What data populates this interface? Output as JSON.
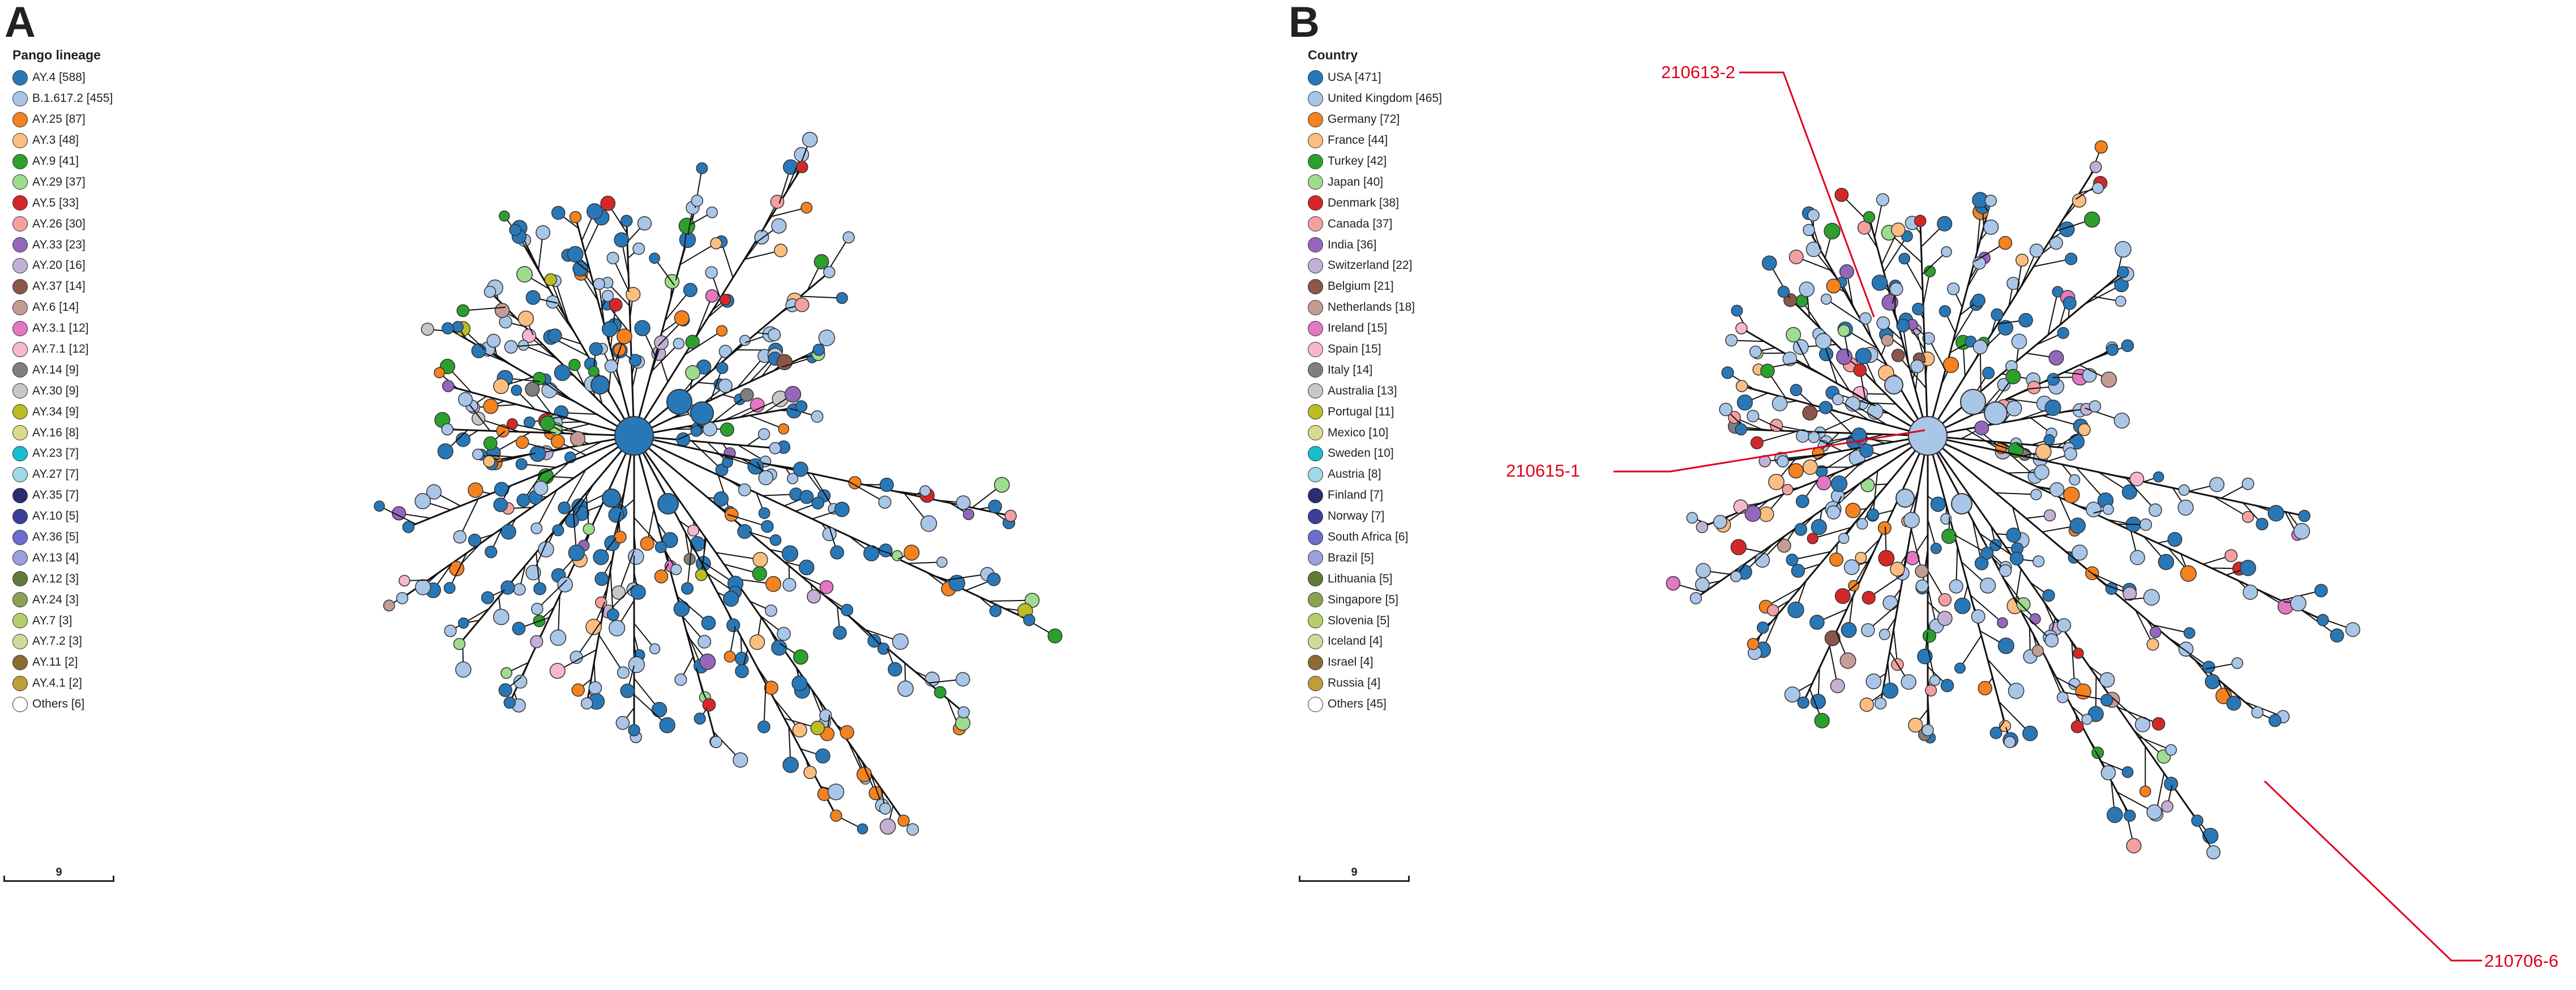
{
  "panels": [
    {
      "letter": "A",
      "legend_title": "Pango lineage",
      "scale_label": "9",
      "legend": [
        {
          "label": "AY.4 [588]",
          "color": "#2878b8"
        },
        {
          "label": "B.1.617.2 [455]",
          "color": "#a9c6e8"
        },
        {
          "label": "AY.25 [87]",
          "color": "#f5821f"
        },
        {
          "label": "AY.3 [48]",
          "color": "#fbbe80"
        },
        {
          "label": "AY.9 [41]",
          "color": "#2ca02c"
        },
        {
          "label": "AY.29 [37]",
          "color": "#9edc8e"
        },
        {
          "label": "AY.5 [33]",
          "color": "#d62728"
        },
        {
          "label": "AY.26 [30]",
          "color": "#f5a0a0"
        },
        {
          "label": "AY.33 [23]",
          "color": "#9467bd"
        },
        {
          "label": "AY.20 [16]",
          "color": "#c5b0d5"
        },
        {
          "label": "AY.37 [14]",
          "color": "#8c564b"
        },
        {
          "label": "AY.6 [14]",
          "color": "#c49c94"
        },
        {
          "label": "AY.3.1 [12]",
          "color": "#e377c2"
        },
        {
          "label": "AY.7.1 [12]",
          "color": "#f7b6d2"
        },
        {
          "label": "AY.14 [9]",
          "color": "#7f7f7f"
        },
        {
          "label": "AY.30 [9]",
          "color": "#c7c7c7"
        },
        {
          "label": "AY.34 [9]",
          "color": "#bcbd22"
        },
        {
          "label": "AY.16 [8]",
          "color": "#dbdb8d"
        },
        {
          "label": "AY.23 [7]",
          "color": "#17becf"
        },
        {
          "label": "AY.27 [7]",
          "color": "#9edae5"
        },
        {
          "label": "AY.35 [7]",
          "color": "#2b2d6e"
        },
        {
          "label": "AY.10 [5]",
          "color": "#3c3f9a"
        },
        {
          "label": "AY.36 [5]",
          "color": "#6b6ecf"
        },
        {
          "label": "AY.13 [4]",
          "color": "#9c9ede"
        },
        {
          "label": "AY.12 [3]",
          "color": "#637939"
        },
        {
          "label": "AY.24 [3]",
          "color": "#8ca252"
        },
        {
          "label": "AY.7 [3]",
          "color": "#b5cf6b"
        },
        {
          "label": "AY.7.2 [3]",
          "color": "#cedb9c"
        },
        {
          "label": "AY.11 [2]",
          "color": "#8c6d31"
        },
        {
          "label": "AY.4.1 [2]",
          "color": "#bd9e39"
        },
        {
          "label": "Others [6]",
          "color": "#ffffff"
        }
      ]
    },
    {
      "letter": "B",
      "legend_title": "Country",
      "scale_label": "9",
      "legend": [
        {
          "label": "USA [471]",
          "color": "#2878b8"
        },
        {
          "label": "United Kingdom [465]",
          "color": "#a9c6e8"
        },
        {
          "label": "Germany [72]",
          "color": "#f5821f"
        },
        {
          "label": "France [44]",
          "color": "#fbbe80"
        },
        {
          "label": "Turkey [42]",
          "color": "#2ca02c"
        },
        {
          "label": "Japan [40]",
          "color": "#9edc8e"
        },
        {
          "label": "Denmark [38]",
          "color": "#d62728"
        },
        {
          "label": "Canada [37]",
          "color": "#f5a0a0"
        },
        {
          "label": "India [36]",
          "color": "#9467bd"
        },
        {
          "label": "Switzerland [22]",
          "color": "#c5b0d5"
        },
        {
          "label": "Belgium [21]",
          "color": "#8c564b"
        },
        {
          "label": "Netherlands [18]",
          "color": "#c49c94"
        },
        {
          "label": "Ireland [15]",
          "color": "#e377c2"
        },
        {
          "label": "Spain [15]",
          "color": "#f7b6d2"
        },
        {
          "label": "Italy [14]",
          "color": "#7f7f7f"
        },
        {
          "label": "Australia [13]",
          "color": "#c7c7c7"
        },
        {
          "label": "Portugal [11]",
          "color": "#bcbd22"
        },
        {
          "label": "Mexico [10]",
          "color": "#dbdb8d"
        },
        {
          "label": "Sweden [10]",
          "color": "#17becf"
        },
        {
          "label": "Austria [8]",
          "color": "#9edae5"
        },
        {
          "label": "Finland [7]",
          "color": "#2b2d6e"
        },
        {
          "label": "Norway [7]",
          "color": "#3c3f9a"
        },
        {
          "label": "South Africa [6]",
          "color": "#6b6ecf"
        },
        {
          "label": "Brazil [5]",
          "color": "#9c9ede"
        },
        {
          "label": "Lithuania [5]",
          "color": "#637939"
        },
        {
          "label": "Singapore [5]",
          "color": "#8ca252"
        },
        {
          "label": "Slovenia [5]",
          "color": "#b5cf6b"
        },
        {
          "label": "Iceland [4]",
          "color": "#cedb9c"
        },
        {
          "label": "Israel [4]",
          "color": "#8c6d31"
        },
        {
          "label": "Russia [4]",
          "color": "#bd9e39"
        },
        {
          "label": "Others [45]",
          "color": "#ffffff"
        }
      ]
    }
  ],
  "callouts": [
    "210613-2",
    "210615-1",
    "210706-6"
  ],
  "callout_color": "#e0001a"
}
